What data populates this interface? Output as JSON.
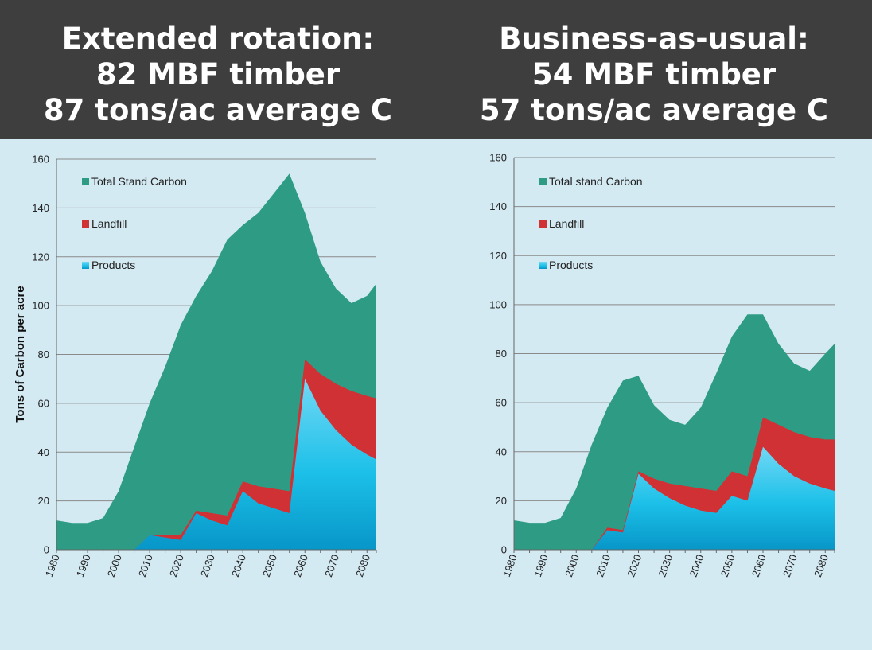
{
  "header": {
    "left_title": [
      "Extended rotation:",
      "82 MBF timber",
      "87 tons/ac average C"
    ],
    "right_title": [
      "Business-as-usual:",
      "54 MBF timber",
      "57 tons/ac average C"
    ]
  },
  "colors": {
    "total": "#2e9c84",
    "landfill": "#d03134",
    "products_top": "#72d8f5",
    "products_mid": "#1cc0e8",
    "products_bottom": "#0796c8",
    "grid": "#8a8a8a",
    "axis": "#666666"
  },
  "chart_data": [
    {
      "type": "area",
      "stacked": false,
      "ylabel": "Tons of Carbon per acre",
      "xlabel": "",
      "ylim": [
        0,
        160
      ],
      "xlim": [
        1980,
        2083
      ],
      "yticks": [
        0,
        20,
        40,
        60,
        80,
        100,
        120,
        140,
        160
      ],
      "xticks": [
        "1980",
        "1990",
        "2000",
        "2010",
        "2020",
        "2030",
        "2040",
        "2050",
        "2060",
        "2070",
        "2080"
      ],
      "legend_position": "top-left",
      "x": [
        1980,
        1985,
        1990,
        1995,
        2000,
        2005,
        2010,
        2015,
        2020,
        2025,
        2030,
        2035,
        2040,
        2045,
        2050,
        2055,
        2060,
        2065,
        2070,
        2075,
        2080,
        2083
      ],
      "series": [
        {
          "name": "Total Stand Carbon",
          "color_key": "total",
          "values": [
            12,
            11,
            11,
            13,
            24,
            42,
            60,
            75,
            92,
            104,
            114,
            127,
            133,
            138,
            146,
            154,
            138,
            118,
            107,
            101,
            104,
            109
          ]
        },
        {
          "name": "Landfill",
          "color_key": "landfill",
          "values": [
            0,
            0,
            0,
            0,
            0,
            0,
            6,
            6,
            6,
            16,
            15,
            14,
            28,
            26,
            25,
            24,
            78,
            72,
            68,
            65,
            63,
            62
          ]
        },
        {
          "name": "Products",
          "color_key": "products",
          "values": [
            0,
            0,
            0,
            0,
            0,
            0,
            6,
            5,
            4,
            15,
            12,
            10,
            24,
            19,
            17,
            15,
            70,
            57,
            49,
            43,
            39,
            37
          ]
        }
      ]
    },
    {
      "type": "area",
      "stacked": false,
      "ylabel": "",
      "xlabel": "",
      "ylim": [
        0,
        160
      ],
      "xlim": [
        1980,
        2083
      ],
      "yticks": [
        0,
        20,
        40,
        60,
        80,
        100,
        120,
        140,
        160
      ],
      "xticks": [
        "1980",
        "1990",
        "2000",
        "2010",
        "2020",
        "2030",
        "2040",
        "2050",
        "2060",
        "2070",
        "2080"
      ],
      "legend_position": "top-left",
      "x": [
        1980,
        1985,
        1990,
        1995,
        2000,
        2005,
        2010,
        2015,
        2020,
        2025,
        2030,
        2035,
        2040,
        2045,
        2050,
        2055,
        2060,
        2065,
        2070,
        2075,
        2080,
        2083
      ],
      "series": [
        {
          "name": "Total stand Carbon",
          "color_key": "total",
          "values": [
            12,
            11,
            11,
            13,
            25,
            43,
            58,
            69,
            71,
            59,
            53,
            51,
            58,
            72,
            87,
            96,
            96,
            84,
            76,
            73,
            80,
            84
          ]
        },
        {
          "name": "Landfill",
          "color_key": "landfill",
          "values": [
            0,
            0,
            0,
            0,
            0,
            0,
            9,
            8,
            32,
            29,
            27,
            26,
            25,
            24,
            32,
            30,
            54,
            51,
            48,
            46,
            45,
            45
          ]
        },
        {
          "name": "Products",
          "color_key": "products",
          "values": [
            0,
            0,
            0,
            0,
            0,
            0,
            8,
            7,
            31,
            25,
            21,
            18,
            16,
            15,
            22,
            20,
            42,
            35,
            30,
            27,
            25,
            24
          ]
        }
      ]
    }
  ]
}
